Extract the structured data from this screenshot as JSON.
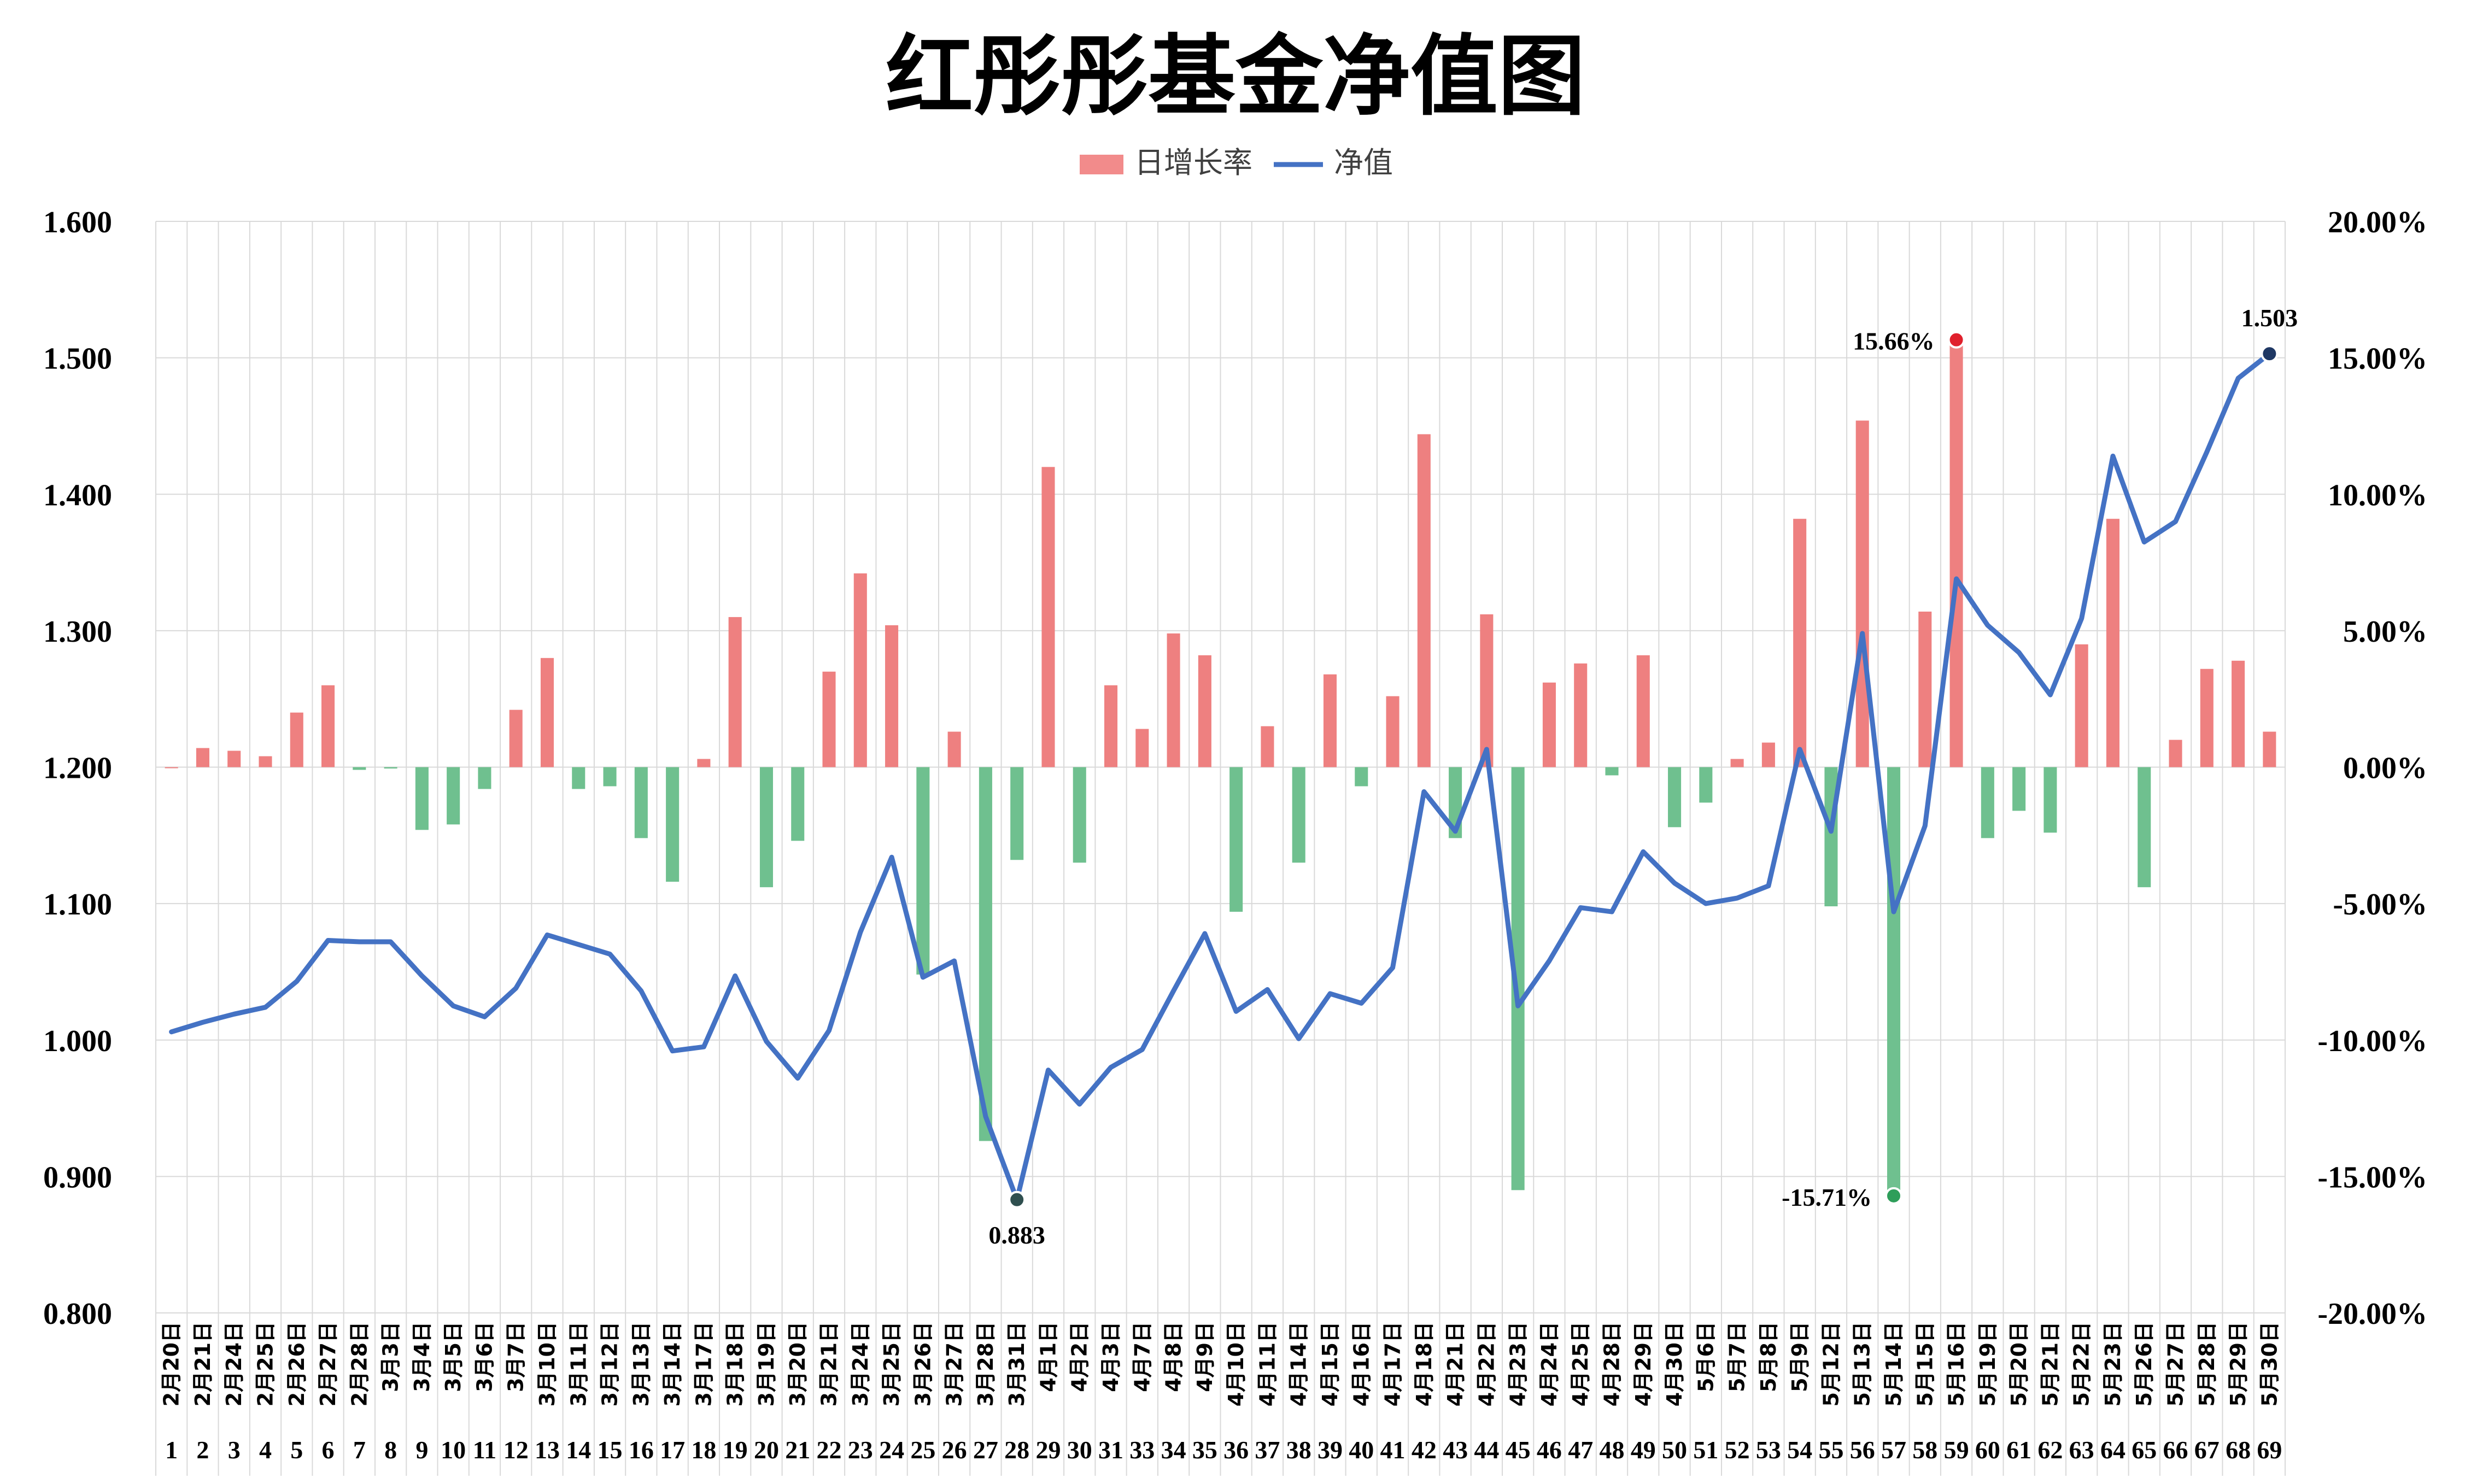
{
  "chart_data": {
    "type": "bar+line",
    "title": "红彤彤基金净值图",
    "legend": {
      "placement": "top-center",
      "entries": [
        {
          "name": "日增长率",
          "kind": "bar",
          "color": "#f28b8b"
        },
        {
          "name": "净值",
          "kind": "line",
          "color": "#4472c4"
        }
      ]
    },
    "colors": {
      "positive_bar": "#ee8080",
      "negative_bar": "#6fc08f",
      "line": "#4472c4",
      "max_marker": "#e0202c",
      "min_marker": "#2e9e5a",
      "end_marker": "#1f3864",
      "grid": "#d9d9d9"
    },
    "y_left": {
      "label": "",
      "range": [
        0.8,
        1.6
      ],
      "ticks": [
        "0.800",
        "0.900",
        "1.000",
        "1.100",
        "1.200",
        "1.300",
        "1.400",
        "1.500",
        "1.600"
      ]
    },
    "y_right": {
      "label": "",
      "range": [
        -20,
        20
      ],
      "unit": "%",
      "ticks": [
        "-20.00%",
        "-15.00%",
        "-10.00%",
        "-5.00%",
        "0.00%",
        "5.00%",
        "10.00%",
        "15.00%",
        "20.00%"
      ]
    },
    "grid": true,
    "dates": [
      "2月20日",
      "2月21日",
      "2月24日",
      "2月25日",
      "2月26日",
      "2月27日",
      "2月28日",
      "3月3日",
      "3月4日",
      "3月5日",
      "3月6日",
      "3月7日",
      "3月10日",
      "3月11日",
      "3月12日",
      "3月13日",
      "3月14日",
      "3月17日",
      "3月18日",
      "3月19日",
      "3月20日",
      "3月21日",
      "3月24日",
      "3月25日",
      "3月26日",
      "3月27日",
      "3月28日",
      "3月31日",
      "4月1日",
      "4月2日",
      "4月3日",
      "4月7日",
      "4月8日",
      "4月9日",
      "4月10日",
      "4月11日",
      "4月14日",
      "4月15日",
      "4月16日",
      "4月17日",
      "4月18日",
      "4月21日",
      "4月22日",
      "4月23日",
      "4月24日",
      "4月25日",
      "4月28日",
      "4月29日",
      "4月30日",
      "5月6日",
      "5月7日",
      "5月8日",
      "5月9日",
      "5月12日",
      "5月13日",
      "5月14日",
      "5月15日",
      "5月16日",
      "5月19日",
      "5月20日",
      "5月21日",
      "5月22日",
      "5月23日",
      "5月26日",
      "5月27日",
      "5月28日",
      "5月29日",
      "5月30日"
    ],
    "indices": [
      "1",
      "2",
      "3",
      "4",
      "5",
      "6",
      "7",
      "8",
      "9",
      "10",
      "11",
      "12",
      "13",
      "14",
      "15",
      "16",
      "17",
      "18",
      "19",
      "20",
      "21",
      "22",
      "23",
      "24",
      "25",
      "26",
      "27",
      "28",
      "29",
      "30",
      "31",
      "33",
      "34",
      "35",
      "36",
      "37",
      "38",
      "39",
      "40",
      "41",
      "42",
      "43",
      "44",
      "45",
      "46",
      "47",
      "48",
      "49",
      "50",
      "51",
      "52",
      "53",
      "54",
      "55",
      "56",
      "57",
      "58",
      "59",
      "60",
      "61",
      "62",
      "63",
      "64",
      "65",
      "66",
      "67",
      "68",
      "69"
    ],
    "series": [
      {
        "name": "日增长率",
        "type": "bar",
        "axis": "right",
        "values": [
          0,
          0.7,
          0.6,
          0.4,
          2.0,
          3.0,
          -0.1,
          -0.05,
          -2.3,
          -2.1,
          -0.8,
          2.1,
          4.0,
          -0.8,
          -0.7,
          -2.6,
          -4.2,
          0.3,
          5.5,
          -4.4,
          -2.7,
          3.5,
          7.1,
          5.2,
          -7.6,
          1.3,
          -13.7,
          -3.4,
          11.0,
          -3.5,
          3.0,
          1.4,
          4.9,
          4.1,
          -5.3,
          1.5,
          -3.5,
          3.4,
          -0.7,
          2.6,
          12.2,
          -2.6,
          5.6,
          -15.5,
          3.1,
          3.8,
          -0.3,
          4.1,
          -2.2,
          -1.3,
          0.3,
          0.9,
          9.1,
          -5.1,
          12.7,
          -15.71,
          5.7,
          15.66,
          -2.6,
          -1.6,
          -2.4,
          4.5,
          9.1,
          -4.4,
          1.0,
          3.6,
          3.9,
          1.3
        ]
      },
      {
        "name": "净值",
        "type": "line",
        "axis": "left",
        "values": [
          1.006,
          1.013,
          1.019,
          1.024,
          1.043,
          1.073,
          1.072,
          1.072,
          1.047,
          1.025,
          1.017,
          1.038,
          1.077,
          1.07,
          1.063,
          1.036,
          0.992,
          0.995,
          1.047,
          0.999,
          0.972,
          1.007,
          1.079,
          1.134,
          1.046,
          1.058,
          0.944,
          0.883,
          0.978,
          0.953,
          0.98,
          0.993,
          1.036,
          1.078,
          1.021,
          1.037,
          1.001,
          1.034,
          1.027,
          1.053,
          1.182,
          1.153,
          1.213,
          1.025,
          1.058,
          1.097,
          1.094,
          1.138,
          1.115,
          1.1,
          1.104,
          1.113,
          1.213,
          1.153,
          1.298,
          1.094,
          1.157,
          1.338,
          1.304,
          1.284,
          1.253,
          1.309,
          1.428,
          1.365,
          1.38,
          1.431,
          1.485,
          1.503
        ]
      }
    ],
    "annotations": [
      {
        "label": "15.66%",
        "series": "日增长率",
        "index": 57,
        "kind": "max"
      },
      {
        "label": "-15.71%",
        "series": "日增长率",
        "index": 55,
        "kind": "min"
      },
      {
        "label": "0.883",
        "series": "净值",
        "index": 27,
        "kind": "min"
      },
      {
        "label": "1.503",
        "series": "净值",
        "index": 67,
        "kind": "end"
      }
    ]
  }
}
